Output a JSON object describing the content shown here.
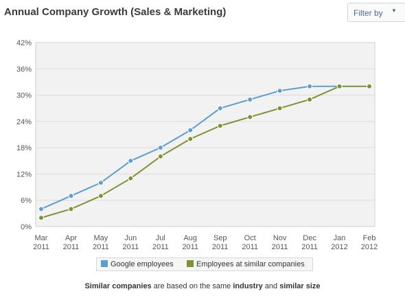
{
  "header": {
    "title": "Annual Company Growth (Sales & Marketing)",
    "filter_label": "Filter by",
    "filter_caret": "▼"
  },
  "footnote": {
    "parts": [
      {
        "text": "Similar companies",
        "bold": true
      },
      {
        "text": " are based on the same ",
        "bold": false
      },
      {
        "text": "industry",
        "bold": true
      },
      {
        "text": " and ",
        "bold": false
      },
      {
        "text": "similar size",
        "bold": true
      }
    ]
  },
  "colors": {
    "google": "#5a9fcd",
    "similar": "#7b9330",
    "plot_bg": "#f2f2f2",
    "grid": "#dcdcdc",
    "axis_text": "#555555"
  },
  "chart_data": {
    "type": "line",
    "title": "Annual Company Growth (Sales & Marketing)",
    "categories": [
      [
        "Mar",
        "2011"
      ],
      [
        "Apr",
        "2011"
      ],
      [
        "May",
        "2011"
      ],
      [
        "Jun",
        "2011"
      ],
      [
        "Jul",
        "2011"
      ],
      [
        "Aug",
        "2011"
      ],
      [
        "Sep",
        "2011"
      ],
      [
        "Oct",
        "2011"
      ],
      [
        "Nov",
        "2011"
      ],
      [
        "Dec",
        "2011"
      ],
      [
        "Jan",
        "2012"
      ],
      [
        "Feb",
        "2012"
      ]
    ],
    "y_ticks": [
      "0%",
      "6%",
      "12%",
      "18%",
      "24%",
      "30%",
      "36%",
      "42%"
    ],
    "ylim": [
      0,
      42
    ],
    "grid": true,
    "legend_position": "bottom-center",
    "series": [
      {
        "name": "Google employees",
        "color": "#5a9fcd",
        "values": [
          4,
          7,
          10,
          15,
          18,
          22,
          27,
          29,
          31,
          32,
          32,
          null
        ]
      },
      {
        "name": "Employees at similar companies",
        "color": "#7b9330",
        "values": [
          2,
          4,
          7,
          11,
          16,
          20,
          23,
          25,
          27,
          29,
          32,
          32
        ]
      }
    ]
  }
}
